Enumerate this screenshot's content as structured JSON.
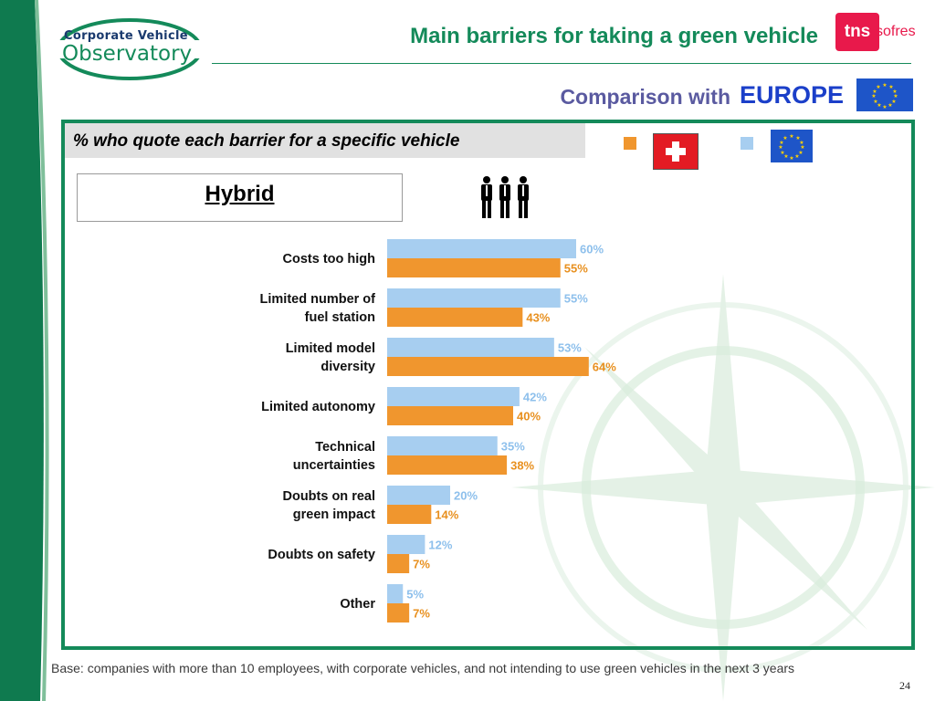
{
  "header": {
    "logo_line1": "Corporate Vehicle",
    "logo_line2": "Observatory",
    "title": "Main barriers for taking a green vehicle",
    "brand": "tns",
    "brand_sub": "sofres",
    "comparison_label": "Comparison with",
    "comparison_target": "EUROPE"
  },
  "panel": {
    "subtitle": "% who quote each barrier for a specific vehicle",
    "vehicle": "Hybrid",
    "people_icon": "people-group-icon"
  },
  "legend": {
    "switzerland": {
      "flag_icon": "swiss-flag-icon",
      "color": "#f0962e"
    },
    "europe": {
      "flag_icon": "eu-flag-icon",
      "color": "#a7cef0"
    }
  },
  "chart_data": {
    "type": "bar",
    "orientation": "horizontal",
    "categories": [
      "Costs too high",
      "Limited number of fuel station",
      "Limited model diversity",
      "Limited autonomy",
      "Technical uncertainties",
      "Doubts on real green impact",
      "Doubts on safety",
      "Other"
    ],
    "series": [
      {
        "key": "europe",
        "color": "#a7cef0",
        "label_color": "#8ec0ec",
        "values": [
          60,
          55,
          53,
          42,
          35,
          20,
          12,
          5
        ]
      },
      {
        "key": "switzerland",
        "color": "#f0962e",
        "label_color": "#e8901f",
        "values": [
          55,
          43,
          64,
          40,
          38,
          14,
          7,
          7
        ]
      }
    ],
    "value_suffix": "%",
    "xlim": [
      0,
      100
    ],
    "grid": false,
    "legend": "top-right (flags)"
  },
  "footer": {
    "note": "Base: companies with more than 10 employees, with corporate vehicles, and not intending to use green vehicles in the next 3 years",
    "page_number": "24"
  },
  "colors": {
    "brand_green": "#148a5a",
    "comparison_text": "#5a5aa0",
    "europe_text": "#1b3fc9",
    "tns_red": "#e8194b"
  }
}
